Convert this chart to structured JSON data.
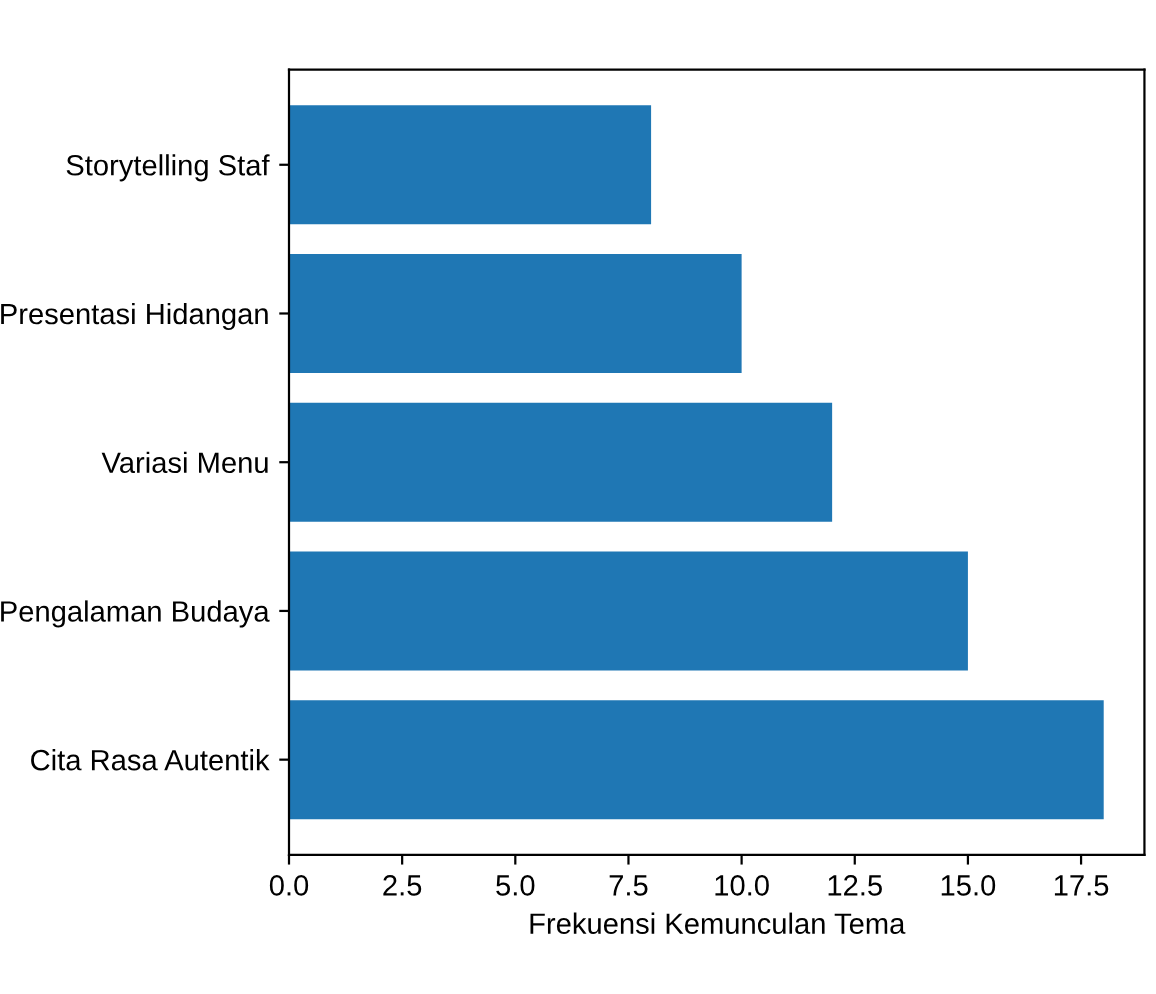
{
  "chart_data": {
    "type": "bar",
    "orientation": "horizontal",
    "xlabel": "Frekuensi Kemunculan Tema",
    "categories": [
      "Storytelling Staf",
      "Presentasi Hidangan",
      "Variasi Menu",
      "Pengalaman Budaya",
      "Cita Rasa Autentik"
    ],
    "values": [
      8,
      10,
      12,
      15,
      18
    ],
    "color": "#1f77b4",
    "xlim": [
      0,
      18.9
    ],
    "xticks": [
      {
        "value": 0,
        "label": "0.0"
      },
      {
        "value": 2.5,
        "label": "2.5"
      },
      {
        "value": 5,
        "label": "5.0"
      },
      {
        "value": 7.5,
        "label": "7.5"
      },
      {
        "value": 10,
        "label": "10.0"
      },
      {
        "value": 12.5,
        "label": "12.5"
      },
      {
        "value": 15,
        "label": "15.0"
      },
      {
        "value": 17.5,
        "label": "17.5"
      }
    ],
    "grid": false,
    "legend": false
  }
}
